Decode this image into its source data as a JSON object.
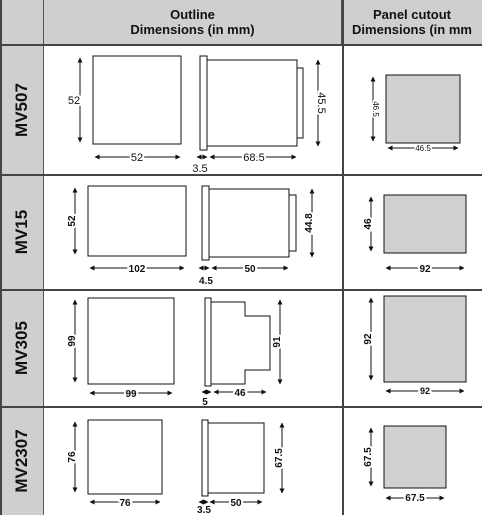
{
  "header": {
    "outline_title": "Outline",
    "outline_sub": "Dimensions (in mm)",
    "cutout_title": "Panel cutout",
    "cutout_sub": "Dimensions (in mm"
  },
  "rows": [
    {
      "model": "MV507",
      "front_w": "52",
      "front_h": "52",
      "side_depth": "68.5",
      "bezel": "3.5",
      "side_h": "45.5",
      "cutout_w": "46.5",
      "cutout_h": "46.5"
    },
    {
      "model": "MV15",
      "front_w": "102",
      "front_h": "52",
      "side_depth": "50",
      "bezel": "4.5",
      "side_h": "44.8",
      "cutout_w": "92",
      "cutout_h": "46"
    },
    {
      "model": "MV305",
      "front_w": "99",
      "front_h": "99",
      "side_depth": "46",
      "bezel": "5",
      "side_h": "91",
      "cutout_w": "92",
      "cutout_h": "92"
    },
    {
      "model": "MV2307",
      "front_w": "76",
      "front_h": "76",
      "side_depth": "50",
      "bezel": "3.5",
      "side_h": "67.5",
      "cutout_w": "67.5",
      "cutout_h": "67.5"
    }
  ]
}
